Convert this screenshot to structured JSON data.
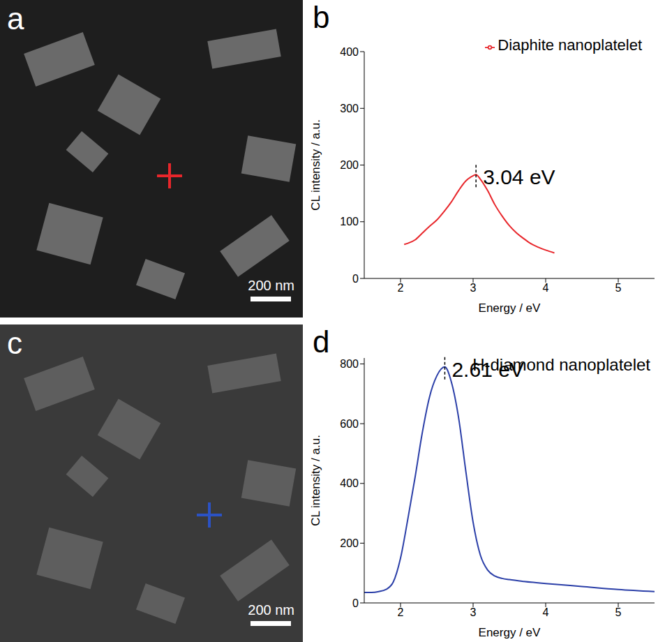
{
  "images": [
    {
      "letter": "a",
      "scale_bar": "200 nm",
      "color": "#e8262b"
    },
    {
      "letter": "c",
      "scale_bar": "200 nm",
      "color": "#2b52c4"
    }
  ],
  "chart_data": [
    {
      "letter": "b",
      "type": "line",
      "x_label": "Energy / eV",
      "y_label": "CL intensity / a.u.",
      "xlim": [
        1.5,
        5.5
      ],
      "xticks": [
        2,
        3,
        4,
        5
      ],
      "ylim": [
        0,
        400
      ],
      "yticks": [
        0,
        100,
        200,
        300,
        400
      ],
      "grid": false,
      "legend": "top right",
      "series": [
        {
          "name": "Diaphite nanoplatelet",
          "color": "#e8262b",
          "x": [
            2.05,
            2.1,
            2.2,
            2.3,
            2.4,
            2.5,
            2.6,
            2.7,
            2.8,
            2.9,
            3.0,
            3.04,
            3.1,
            3.2,
            3.3,
            3.4,
            3.5,
            3.6,
            3.7,
            3.8,
            3.9,
            4.0,
            4.12
          ],
          "values": [
            60,
            62,
            68,
            80,
            92,
            103,
            118,
            135,
            155,
            172,
            181,
            183,
            175,
            155,
            130,
            110,
            93,
            80,
            70,
            61,
            55,
            50,
            45
          ]
        }
      ],
      "annotations": [
        {
          "text": "3.04 eV",
          "x": 3.04,
          "y": 183
        }
      ]
    },
    {
      "letter": "d",
      "type": "line",
      "title": "H-diamond nanoplatelet",
      "x_label": "Energy / eV",
      "y_label": "CL intensity / a.u.",
      "xlim": [
        1.5,
        5.5
      ],
      "xticks": [
        2,
        3,
        4,
        5
      ],
      "ylim": [
        0,
        820
      ],
      "yticks": [
        0,
        200,
        400,
        600,
        800
      ],
      "grid": false,
      "series": [
        {
          "color": "#2b3fa8",
          "x": [
            1.5,
            1.6,
            1.7,
            1.8,
            1.9,
            2.0,
            2.1,
            2.2,
            2.3,
            2.4,
            2.5,
            2.61,
            2.7,
            2.8,
            2.9,
            3.0,
            3.1,
            3.2,
            3.3,
            3.4,
            3.5,
            3.7,
            4.0,
            4.5,
            5.0,
            5.5
          ],
          "values": [
            35,
            35,
            38,
            45,
            70,
            150,
            280,
            420,
            570,
            690,
            760,
            790,
            740,
            620,
            440,
            270,
            160,
            110,
            90,
            82,
            78,
            72,
            65,
            55,
            45,
            38
          ]
        }
      ],
      "annotations": [
        {
          "text": "2.61 eV",
          "x": 2.61,
          "y": 790
        }
      ]
    }
  ]
}
